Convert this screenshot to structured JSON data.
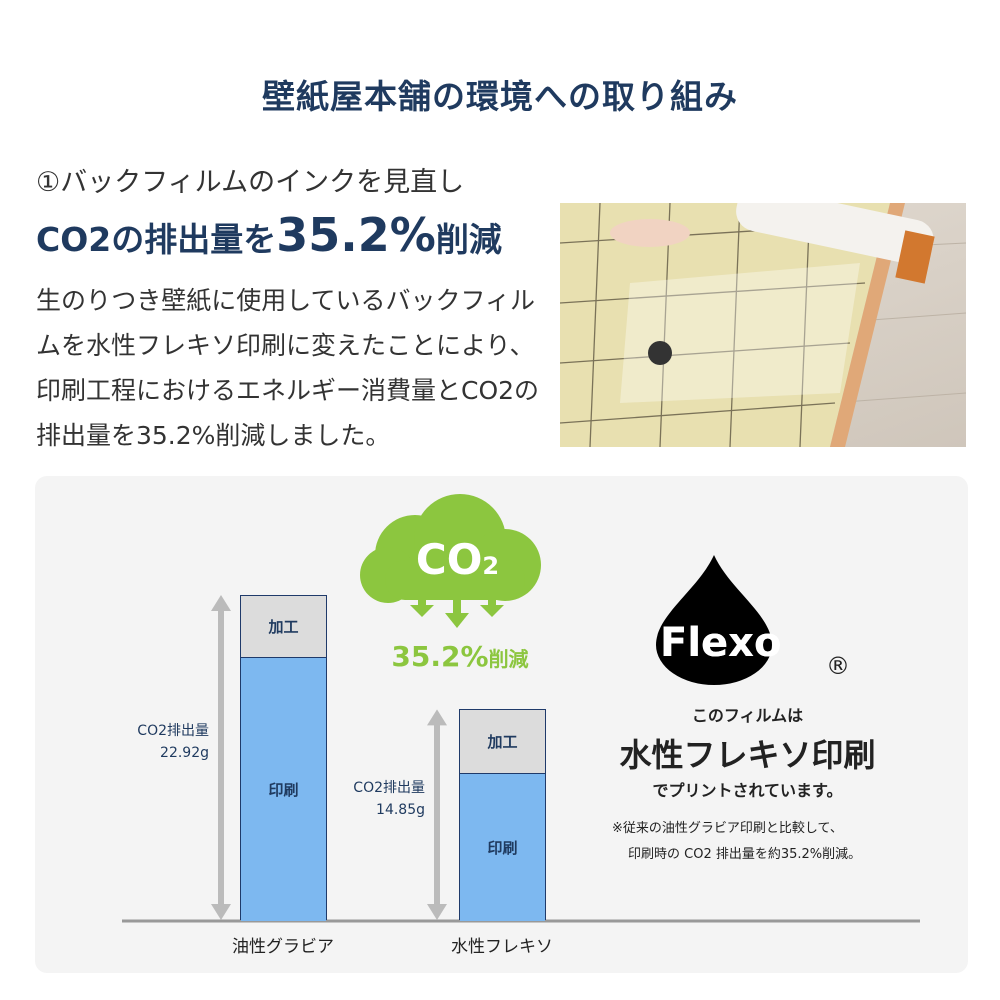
{
  "title": "壁紙屋本舗の環境への取り組み",
  "section": {
    "subtitle": "①バックフィルムのインクを見直し",
    "headline_prefix": "CO2の排出量を",
    "headline_value": "35.2%",
    "headline_suffix": "削減",
    "paragraph": "生のりつき壁紙に使用しているバックフィルムを水性フレキソ印刷に変えたことにより、印刷工程におけるエネルギー消費量とCO2の排出量を35.2%削減しました。"
  },
  "cloud": {
    "label": "CO",
    "subscript": "2",
    "reduction": "35.2%",
    "reduction_suffix": "削減"
  },
  "flexo": {
    "logo_text": "Flexo",
    "registered": "®",
    "line1": "このフィルムは",
    "line2": "水性フレキソ印刷",
    "line3": "でプリントされています。",
    "note1": "※従来の油性グラビア印刷と比較して、",
    "note2": "印刷時の CO2 排出量を約35.2%削減。"
  },
  "colors": {
    "navy": "#1f3a5f",
    "green": "#8cc63f",
    "bar_print": "#7db8f0",
    "bar_process": "#dcdcdc"
  },
  "chart_data": {
    "type": "bar",
    "stacked": true,
    "categories": [
      "油性グラビア",
      "水性フレキソ"
    ],
    "series": [
      {
        "name": "印刷",
        "values": [
          18.6,
          10.45
        ]
      },
      {
        "name": "加工",
        "values": [
          4.32,
          4.4
        ]
      }
    ],
    "totals": [
      22.92,
      14.85
    ],
    "total_label": "CO2排出量",
    "total_texts": [
      "22.92g",
      "14.85g"
    ],
    "unit": "g",
    "grid": false
  }
}
